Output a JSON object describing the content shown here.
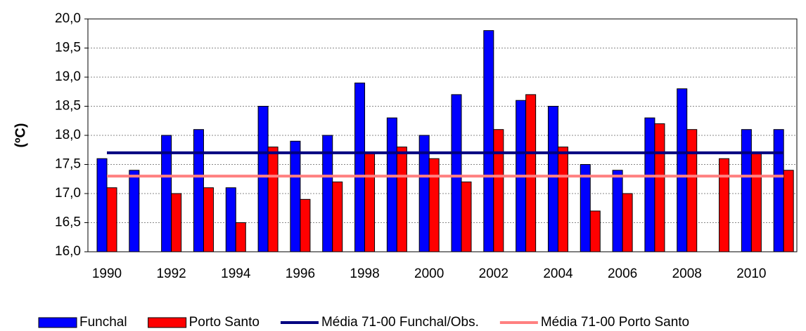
{
  "chart_data": {
    "type": "bar",
    "y_label": "(ºC)",
    "categories": [
      "1990",
      null,
      "1992",
      null,
      "1994",
      null,
      "1996",
      null,
      "1998",
      null,
      "2000",
      null,
      "2002",
      null,
      "2004",
      null,
      "2006",
      null,
      "2008",
      null,
      "2010",
      null
    ],
    "series": [
      {
        "name": "Funchal",
        "type": "bar",
        "color": "#0000ff",
        "values": [
          17.6,
          17.4,
          18.0,
          18.1,
          17.1,
          18.5,
          17.9,
          18.0,
          18.9,
          18.3,
          18.0,
          18.7,
          19.8,
          18.6,
          18.5,
          17.5,
          17.4,
          18.3,
          18.8,
          null,
          18.1,
          18.1
        ]
      },
      {
        "name": "Porto Santo",
        "type": "bar",
        "color": "#ff0000",
        "values": [
          17.1,
          null,
          17.0,
          17.1,
          16.5,
          17.8,
          16.9,
          17.2,
          17.7,
          17.8,
          17.6,
          17.2,
          18.1,
          18.7,
          17.8,
          16.7,
          17.0,
          18.2,
          18.1,
          17.6,
          17.7,
          17.4
        ]
      },
      {
        "name": "Média 71-00 Funchal/Obs.",
        "type": "line",
        "color": "#000080",
        "values": [
          17.7,
          17.7,
          17.7,
          17.7,
          17.7,
          17.7,
          17.7,
          17.7,
          17.7,
          17.7,
          17.7,
          17.7,
          17.7,
          17.7,
          17.7,
          17.7,
          17.7,
          17.7,
          17.7,
          17.7,
          17.7,
          17.7
        ]
      },
      {
        "name": "Média 71-00 Porto Santo",
        "type": "line",
        "color": "#ff8080",
        "values": [
          17.3,
          17.3,
          17.3,
          17.3,
          17.3,
          17.3,
          17.3,
          17.3,
          17.3,
          17.3,
          17.3,
          17.3,
          17.3,
          17.3,
          17.3,
          17.3,
          17.3,
          17.3,
          17.3,
          17.3,
          17.3,
          17.3
        ]
      }
    ],
    "ylim": [
      16,
      20
    ],
    "yticks": [
      {
        "value": 16,
        "label": "16,0"
      },
      {
        "value": 16.5,
        "label": "16,5"
      },
      {
        "value": 17,
        "label": "17,0"
      },
      {
        "value": 17.5,
        "label": "17,5"
      },
      {
        "value": 18,
        "label": "18,0"
      },
      {
        "value": 18.5,
        "label": "18,5"
      },
      {
        "value": 19,
        "label": "19,0"
      },
      {
        "value": 19.5,
        "label": "19,5"
      },
      {
        "value": 20,
        "label": "20,0"
      }
    ],
    "grid": true,
    "legend": "bottom"
  }
}
